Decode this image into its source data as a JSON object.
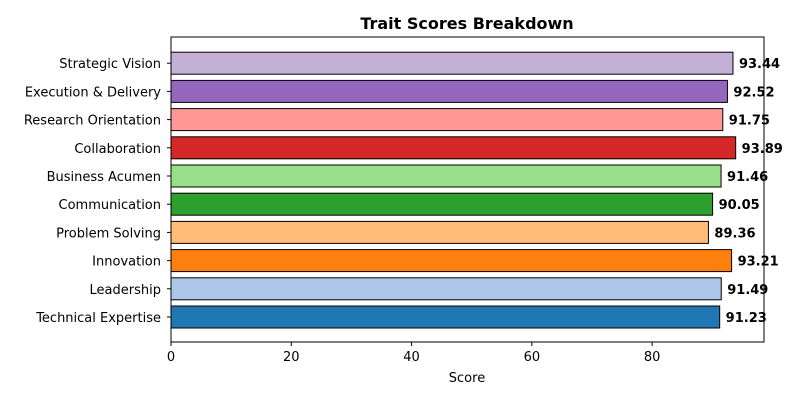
{
  "chart_data": {
    "type": "bar",
    "orientation": "horizontal",
    "title": "Trait Scores Breakdown",
    "xlabel": "Score",
    "ylabel": "",
    "xlim": [
      0,
      98.6
    ],
    "xticks": [
      0,
      20,
      40,
      60,
      80
    ],
    "grid": false,
    "categories": [
      "Technical Expertise",
      "Leadership",
      "Innovation",
      "Problem Solving",
      "Communication",
      "Business Acumen",
      "Collaboration",
      "Research Orientation",
      "Execution & Delivery",
      "Strategic Vision"
    ],
    "values": [
      91.23,
      91.49,
      93.21,
      89.36,
      90.05,
      91.46,
      93.89,
      91.75,
      92.52,
      93.44
    ],
    "value_labels": [
      "91.23",
      "91.49",
      "93.21",
      "89.36",
      "90.05",
      "91.46",
      "93.89",
      "91.75",
      "92.52",
      "93.44"
    ],
    "colors": [
      "#1f77b4",
      "#aec7e8",
      "#ff7f0e",
      "#ffbb78",
      "#2ca02c",
      "#98df8a",
      "#d62728",
      "#ff9896",
      "#9467bd",
      "#c5b0d5"
    ]
  }
}
